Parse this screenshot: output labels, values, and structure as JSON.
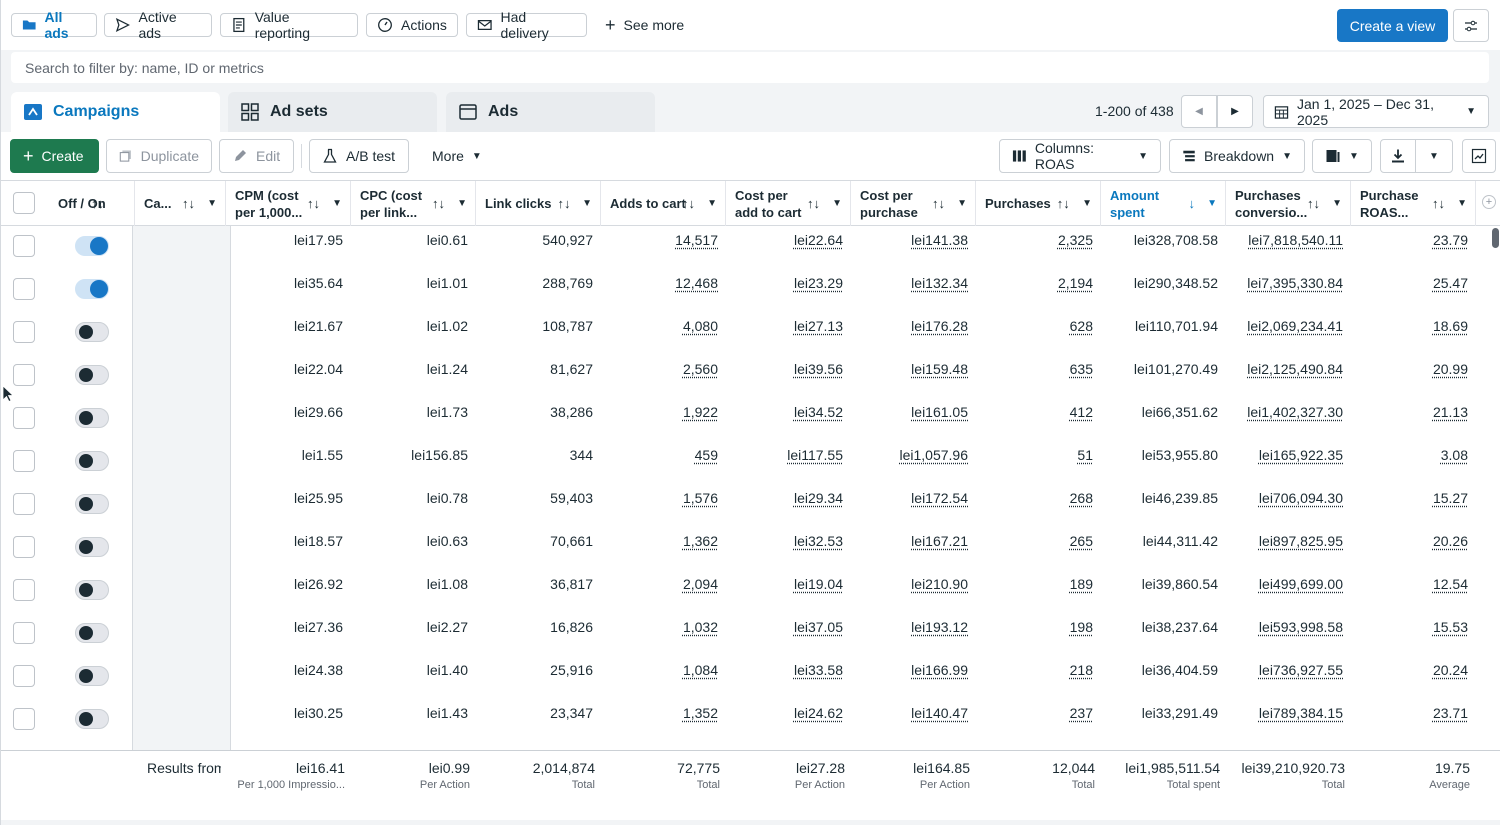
{
  "filters": {
    "chips": [
      "All ads",
      "Active ads",
      "Value reporting",
      "Actions",
      "Had delivery"
    ],
    "see_more": "See more",
    "create_view": "Create a view"
  },
  "search": {
    "placeholder": "Search to filter by: name, ID or metrics"
  },
  "tabs": {
    "campaigns": "Campaigns",
    "ad_sets": "Ad sets",
    "ads": "Ads"
  },
  "pagination": {
    "range": "1-200 of 438"
  },
  "date_range": "Jan 1, 2025 – Dec 31, 2025",
  "toolbar": {
    "create": "Create",
    "duplicate": "Duplicate",
    "edit": "Edit",
    "ab_test": "A/B test",
    "more": "More",
    "columns": "Columns: ROAS",
    "breakdown": "Breakdown"
  },
  "columns": [
    "Off / On",
    "Ca...",
    "CPM (cost per 1,000...",
    "CPC (cost per link...",
    "Link clicks",
    "Adds to cart",
    "Cost per add to cart",
    "Cost per purchase",
    "Purchases",
    "Amount spent",
    "Purchases conversio...",
    "Purchase ROAS..."
  ],
  "rows": [
    {
      "on": true,
      "cpm": "lei17.95",
      "cpc": "lei0.61",
      "clicks": "540,927",
      "atc": "14,517",
      "cpatc": "lei22.64",
      "cpp": "lei141.38",
      "purch": "2,325",
      "spent": "lei328,708.58",
      "conv": "lei7,818,540.11",
      "roas": "23.79"
    },
    {
      "on": true,
      "cpm": "lei35.64",
      "cpc": "lei1.01",
      "clicks": "288,769",
      "atc": "12,468",
      "cpatc": "lei23.29",
      "cpp": "lei132.34",
      "purch": "2,194",
      "spent": "lei290,348.52",
      "conv": "lei7,395,330.84",
      "roas": "25.47"
    },
    {
      "on": false,
      "cpm": "lei21.67",
      "cpc": "lei1.02",
      "clicks": "108,787",
      "atc": "4,080",
      "cpatc": "lei27.13",
      "cpp": "lei176.28",
      "purch": "628",
      "spent": "lei110,701.94",
      "conv": "lei2,069,234.41",
      "roas": "18.69"
    },
    {
      "on": false,
      "cpm": "lei22.04",
      "cpc": "lei1.24",
      "clicks": "81,627",
      "atc": "2,560",
      "cpatc": "lei39.56",
      "cpp": "lei159.48",
      "purch": "635",
      "spent": "lei101,270.49",
      "conv": "lei2,125,490.84",
      "roas": "20.99"
    },
    {
      "on": false,
      "cpm": "lei29.66",
      "cpc": "lei1.73",
      "clicks": "38,286",
      "atc": "1,922",
      "cpatc": "lei34.52",
      "cpp": "lei161.05",
      "purch": "412",
      "spent": "lei66,351.62",
      "conv": "lei1,402,327.30",
      "roas": "21.13"
    },
    {
      "on": false,
      "cpm": "lei1.55",
      "cpc": "lei156.85",
      "clicks": "344",
      "atc": "459",
      "cpatc": "lei117.55",
      "cpp": "lei1,057.96",
      "purch": "51",
      "spent": "lei53,955.80",
      "conv": "lei165,922.35",
      "roas": "3.08"
    },
    {
      "on": false,
      "cpm": "lei25.95",
      "cpc": "lei0.78",
      "clicks": "59,403",
      "atc": "1,576",
      "cpatc": "lei29.34",
      "cpp": "lei172.54",
      "purch": "268",
      "spent": "lei46,239.85",
      "conv": "lei706,094.30",
      "roas": "15.27"
    },
    {
      "on": false,
      "cpm": "lei18.57",
      "cpc": "lei0.63",
      "clicks": "70,661",
      "atc": "1,362",
      "cpatc": "lei32.53",
      "cpp": "lei167.21",
      "purch": "265",
      "spent": "lei44,311.42",
      "conv": "lei897,825.95",
      "roas": "20.26"
    },
    {
      "on": false,
      "cpm": "lei26.92",
      "cpc": "lei1.08",
      "clicks": "36,817",
      "atc": "2,094",
      "cpatc": "lei19.04",
      "cpp": "lei210.90",
      "purch": "189",
      "spent": "lei39,860.54",
      "conv": "lei499,699.00",
      "roas": "12.54"
    },
    {
      "on": false,
      "cpm": "lei27.36",
      "cpc": "lei2.27",
      "clicks": "16,826",
      "atc": "1,032",
      "cpatc": "lei37.05",
      "cpp": "lei193.12",
      "purch": "198",
      "spent": "lei38,237.64",
      "conv": "lei593,998.58",
      "roas": "15.53"
    },
    {
      "on": false,
      "cpm": "lei24.38",
      "cpc": "lei1.40",
      "clicks": "25,916",
      "atc": "1,084",
      "cpatc": "lei33.58",
      "cpp": "lei166.99",
      "purch": "218",
      "spent": "lei36,404.59",
      "conv": "lei736,927.55",
      "roas": "20.24"
    },
    {
      "on": false,
      "cpm": "lei30.25",
      "cpc": "lei1.43",
      "clicks": "23,347",
      "atc": "1,352",
      "cpatc": "lei24.62",
      "cpp": "lei140.47",
      "purch": "237",
      "spent": "lei33,291.49",
      "conv": "lei789,384.15",
      "roas": "23.71"
    }
  ],
  "summary": {
    "label": "Results from",
    "values": [
      {
        "value": "lei16.41",
        "sub": "Per 1,000 Impressio..."
      },
      {
        "value": "lei0.99",
        "sub": "Per Action"
      },
      {
        "value": "2,014,874",
        "sub": "Total"
      },
      {
        "value": "72,775",
        "sub": "Total"
      },
      {
        "value": "lei27.28",
        "sub": "Per Action"
      },
      {
        "value": "lei164.85",
        "sub": "Per Action"
      },
      {
        "value": "12,044",
        "sub": "Total"
      },
      {
        "value": "lei1,985,511.54",
        "sub": "Total spent"
      },
      {
        "value": "lei39,210,920.73",
        "sub": "Total"
      },
      {
        "value": "19.75",
        "sub": "Average"
      }
    ]
  },
  "colors": {
    "brand_blue": "#1877c6",
    "create_green": "#1e7a4f",
    "sorted_header": "#0a78be"
  }
}
